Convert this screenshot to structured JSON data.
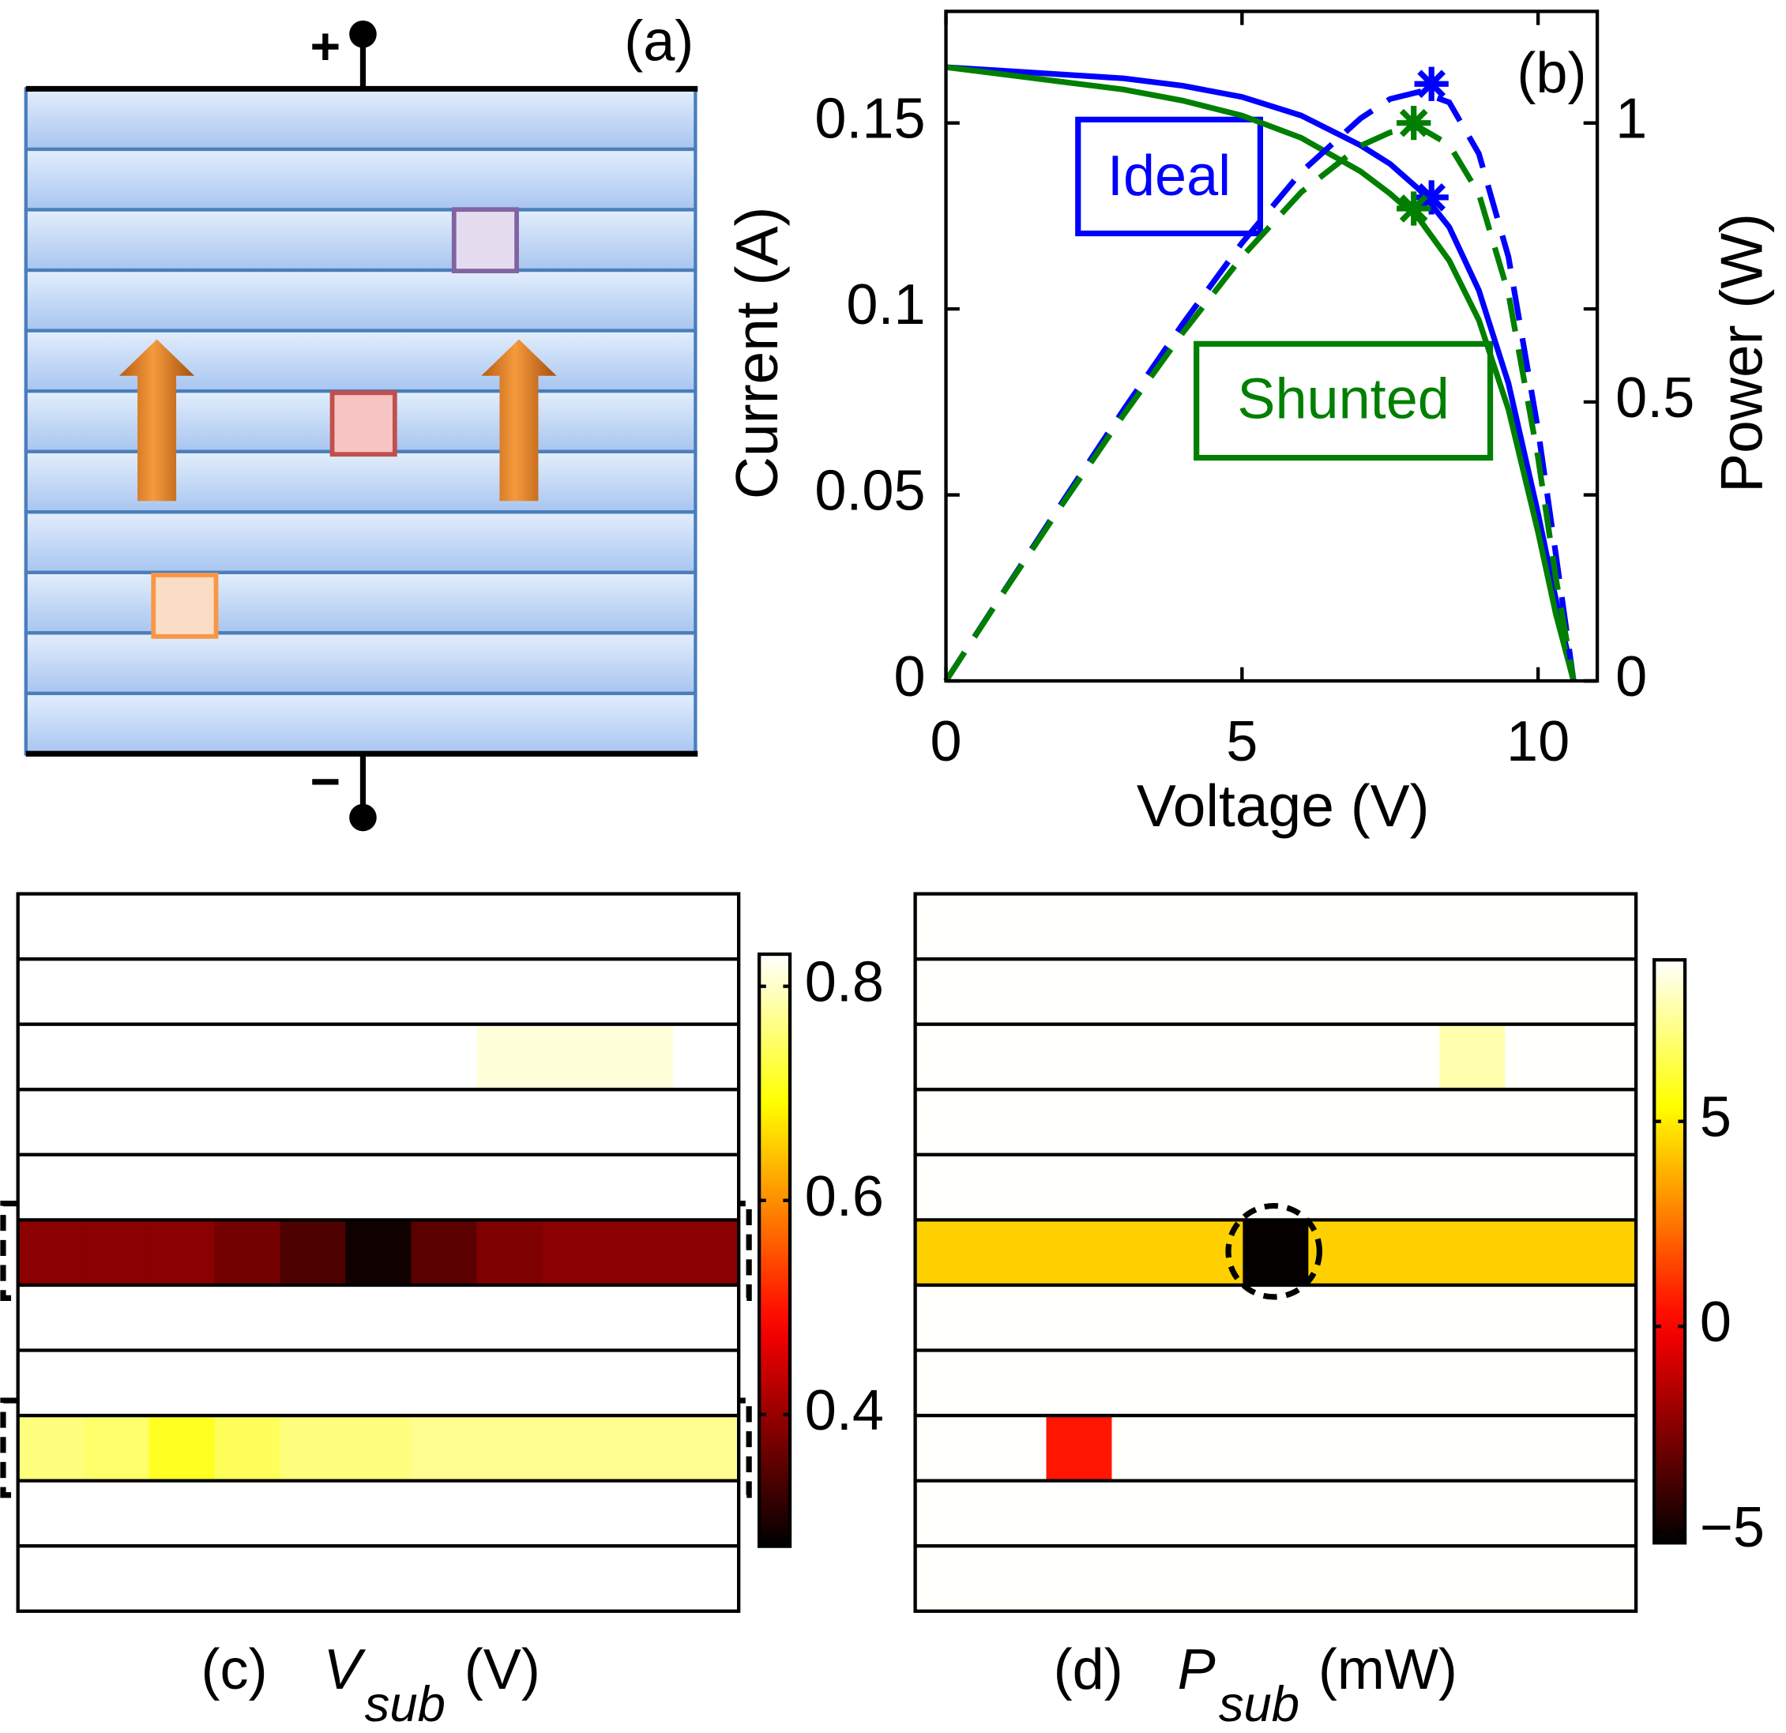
{
  "schematic": {
    "label": "(a)",
    "plus": "+",
    "minus": "−"
  },
  "chart_data": [
    {
      "type": "line",
      "label": "(b)",
      "xlabel": "Voltage (V)",
      "ylabel": "Current (A)",
      "y2label": "Power (W)",
      "x": [
        0,
        1,
        2,
        3,
        4,
        5,
        6,
        7,
        7.5,
        8,
        8.5,
        9,
        9.5,
        10,
        10.3,
        10.6
      ],
      "xlim": [
        0,
        11
      ],
      "xticks": [
        0,
        5,
        10
      ],
      "ylim": [
        0,
        0.18
      ],
      "yticks": [
        0,
        0.05,
        0.1,
        0.15
      ],
      "y2lim": [
        0,
        1.2
      ],
      "y2ticks": [
        0,
        0.5,
        1
      ],
      "series": [
        {
          "name": "Ideal",
          "color": "#0000ff",
          "values": [
            0.165,
            0.164,
            0.163,
            0.162,
            0.16,
            0.157,
            0.152,
            0.144,
            0.139,
            0.132,
            0.122,
            0.105,
            0.08,
            0.045,
            0.022,
            0
          ],
          "mpp": {
            "x": 8.2,
            "value": 0.13
          }
        },
        {
          "name": "Shunted",
          "color": "#007f00",
          "values": [
            0.165,
            0.163,
            0.161,
            0.159,
            0.156,
            0.152,
            0.146,
            0.137,
            0.131,
            0.124,
            0.113,
            0.097,
            0.073,
            0.04,
            0.018,
            0
          ],
          "mpp": {
            "x": 7.9,
            "value": 0.127
          }
        },
        {
          "color": "#0000ff",
          "axis": "y2",
          "dashed": true,
          "values": [
            0,
            0.164,
            0.326,
            0.486,
            0.64,
            0.785,
            0.912,
            1.008,
            1.043,
            1.056,
            1.037,
            0.945,
            0.76,
            0.45,
            0.227,
            0
          ],
          "mpp": {
            "x": 8.2,
            "value": 1.07
          }
        },
        {
          "color": "#007f00",
          "axis": "y2",
          "dashed": true,
          "values": [
            0,
            0.163,
            0.322,
            0.477,
            0.624,
            0.76,
            0.876,
            0.959,
            0.983,
            0.992,
            0.961,
            0.873,
            0.694,
            0.4,
            0.185,
            0
          ],
          "mpp": {
            "x": 7.9,
            "value": 1.0
          }
        }
      ]
    },
    {
      "type": "heatmap",
      "label": "(c)",
      "symbol": "V",
      "subscript": "sub",
      "unit": "(V)",
      "clim": [
        0.277,
        0.83
      ],
      "cticks": [
        0.4,
        0.6,
        0.8
      ],
      "values": [
        [
          0.83,
          0.83,
          0.83,
          0.83,
          0.83,
          0.83,
          0.83,
          0.83,
          0.83,
          0.83,
          0.83
        ],
        [
          0.83,
          0.83,
          0.83,
          0.83,
          0.83,
          0.83,
          0.83,
          0.83,
          0.83,
          0.83,
          0.83
        ],
        [
          0.83,
          0.83,
          0.83,
          0.83,
          0.83,
          0.83,
          0.83,
          0.81,
          0.81,
          0.81,
          0.83
        ],
        [
          0.83,
          0.83,
          0.83,
          0.83,
          0.83,
          0.83,
          0.83,
          0.83,
          0.83,
          0.83,
          0.83
        ],
        [
          0.83,
          0.83,
          0.83,
          0.83,
          0.83,
          0.83,
          0.83,
          0.83,
          0.83,
          0.83,
          0.83
        ],
        [
          0.39,
          0.39,
          0.39,
          0.37,
          0.34,
          0.29,
          0.35,
          0.38,
          0.39,
          0.39,
          0.39
        ],
        [
          0.83,
          0.83,
          0.83,
          0.83,
          0.83,
          0.83,
          0.83,
          0.83,
          0.83,
          0.83,
          0.83
        ],
        [
          0.83,
          0.83,
          0.83,
          0.83,
          0.83,
          0.83,
          0.83,
          0.83,
          0.83,
          0.83,
          0.83
        ],
        [
          0.76,
          0.75,
          0.71,
          0.74,
          0.76,
          0.76,
          0.77,
          0.77,
          0.77,
          0.77,
          0.77
        ],
        [
          0.83,
          0.83,
          0.83,
          0.83,
          0.83,
          0.83,
          0.83,
          0.83,
          0.83,
          0.83,
          0.83
        ],
        [
          0.83,
          0.83,
          0.83,
          0.83,
          0.83,
          0.83,
          0.83,
          0.83,
          0.83,
          0.83,
          0.83
        ]
      ]
    },
    {
      "type": "heatmap",
      "label": "(d)",
      "symbol": "P",
      "subscript": "sub",
      "unit": "(mW)",
      "clim": [
        -5.28,
        8.94
      ],
      "cticks": [
        {
          "value": -5,
          "label": "−5"
        },
        0,
        5
      ],
      "values": [
        [
          8.9,
          8.9,
          8.9,
          8.9,
          8.9,
          8.9,
          8.9,
          8.9,
          8.9,
          8.9,
          8.9
        ],
        [
          8.9,
          8.9,
          8.9,
          8.9,
          8.9,
          8.9,
          8.9,
          8.9,
          8.9,
          8.9,
          8.9
        ],
        [
          8.9,
          8.9,
          8.9,
          8.9,
          8.9,
          8.9,
          8.9,
          8.9,
          7.8,
          8.9,
          8.9
        ],
        [
          8.9,
          8.9,
          8.9,
          8.9,
          8.9,
          8.9,
          8.9,
          8.9,
          8.9,
          8.9,
          8.9
        ],
        [
          8.9,
          8.9,
          8.9,
          8.9,
          8.9,
          8.9,
          8.9,
          8.9,
          8.9,
          8.9,
          8.9
        ],
        [
          4.4,
          4.4,
          4.4,
          4.4,
          4.4,
          -5.2,
          4.4,
          4.4,
          4.4,
          4.4,
          4.4
        ],
        [
          8.9,
          8.9,
          8.9,
          8.9,
          8.9,
          8.9,
          8.9,
          8.9,
          8.9,
          8.9,
          8.9
        ],
        [
          8.9,
          8.9,
          8.9,
          8.9,
          8.9,
          8.9,
          8.9,
          8.9,
          8.9,
          8.9,
          8.9
        ],
        [
          8.9,
          8.9,
          0.5,
          8.9,
          8.9,
          8.9,
          8.9,
          8.9,
          8.9,
          8.9,
          8.9
        ],
        [
          8.9,
          8.9,
          8.9,
          8.9,
          8.9,
          8.9,
          8.9,
          8.9,
          8.9,
          8.9,
          8.9
        ],
        [
          8.9,
          8.9,
          8.9,
          8.9,
          8.9,
          8.9,
          8.9,
          8.9,
          8.9,
          8.9,
          8.9
        ]
      ]
    }
  ]
}
